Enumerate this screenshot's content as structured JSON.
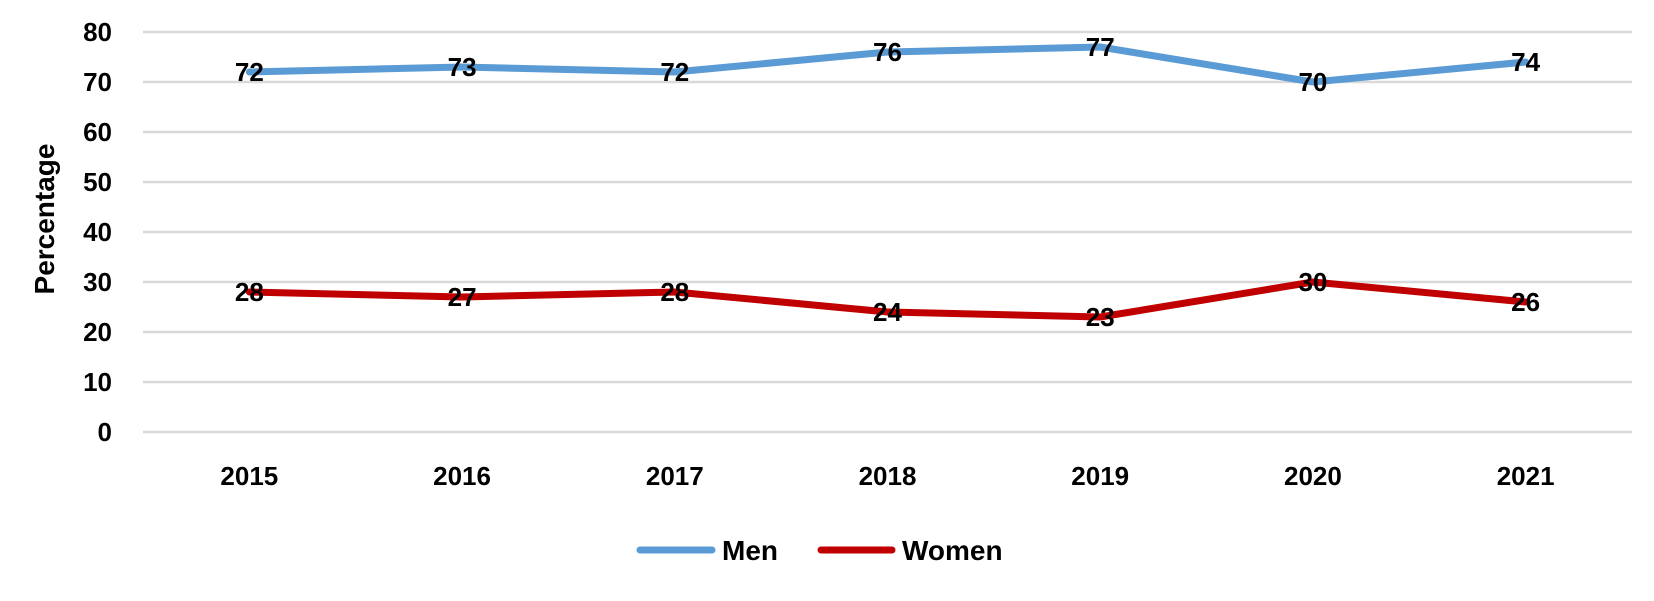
{
  "chart_data": {
    "type": "line",
    "title": "",
    "xlabel": "",
    "ylabel": "Percentage",
    "ylim": [
      0,
      80
    ],
    "yticks": [
      0,
      10,
      20,
      30,
      40,
      50,
      60,
      70,
      80
    ],
    "categories": [
      "2015",
      "2016",
      "2017",
      "2018",
      "2019",
      "2020",
      "2021"
    ],
    "series": [
      {
        "name": "Men",
        "color": "#5b9bd5",
        "values": [
          72,
          73,
          72,
          76,
          77,
          70,
          74
        ]
      },
      {
        "name": "Women",
        "color": "#c00000",
        "values": [
          28,
          27,
          28,
          24,
          23,
          30,
          26
        ]
      }
    ],
    "grid": true,
    "legend": "bottom-center",
    "data_labels": true
  }
}
